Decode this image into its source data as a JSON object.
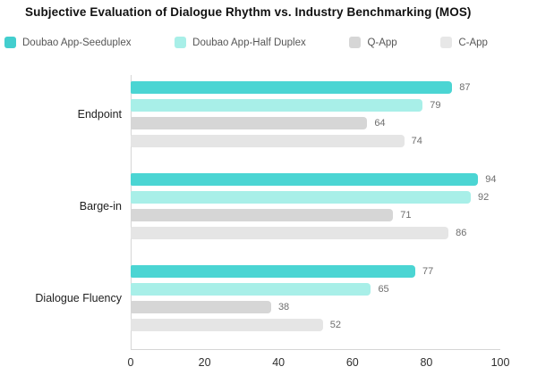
{
  "title": "Subjective Evaluation of Dialogue Rhythm vs. Industry Benchmarking (MOS)",
  "legend": {
    "items": [
      {
        "label": "Doubao App-Seeduplex",
        "color": "#43cece"
      },
      {
        "label": "Doubao App-Half Duplex",
        "color": "#a8efe8"
      },
      {
        "label": "Q-App",
        "color": "#d6d6d6"
      },
      {
        "label": "C-App",
        "color": "#e7e7e7"
      }
    ]
  },
  "colors": {
    "axis": "#d6d6d6",
    "title_text": "#111111",
    "category_text": "#1f1f1f",
    "value_text": "#6e6e6e",
    "tick_text": "#2e2e2e",
    "legend_text": "#565656",
    "background": "#ffffff"
  },
  "chart_data": {
    "type": "bar",
    "orientation": "horizontal",
    "title": "Subjective Evaluation of Dialogue Rhythm vs. Industry Benchmarking (MOS)",
    "categories": [
      "Endpoint",
      "Barge-in",
      "Dialogue Fluency"
    ],
    "series": [
      {
        "name": "Doubao App-Seeduplex",
        "color": "#4bd5d3",
        "values": [
          87,
          94,
          77
        ]
      },
      {
        "name": "Doubao App-Half Duplex",
        "color": "#a8efe8",
        "values": [
          79,
          92,
          65
        ]
      },
      {
        "name": "Q-App",
        "color": "#d6d6d6",
        "values": [
          64,
          71,
          38
        ]
      },
      {
        "name": "C-App",
        "color": "#e5e5e5",
        "values": [
          74,
          86,
          52
        ]
      }
    ],
    "xlabel": "",
    "ylabel": "",
    "xlim": [
      0,
      100
    ],
    "x_ticks": [
      0,
      20,
      40,
      60,
      80,
      100
    ],
    "value_labels": true,
    "grid": false,
    "legend_position": "top"
  }
}
